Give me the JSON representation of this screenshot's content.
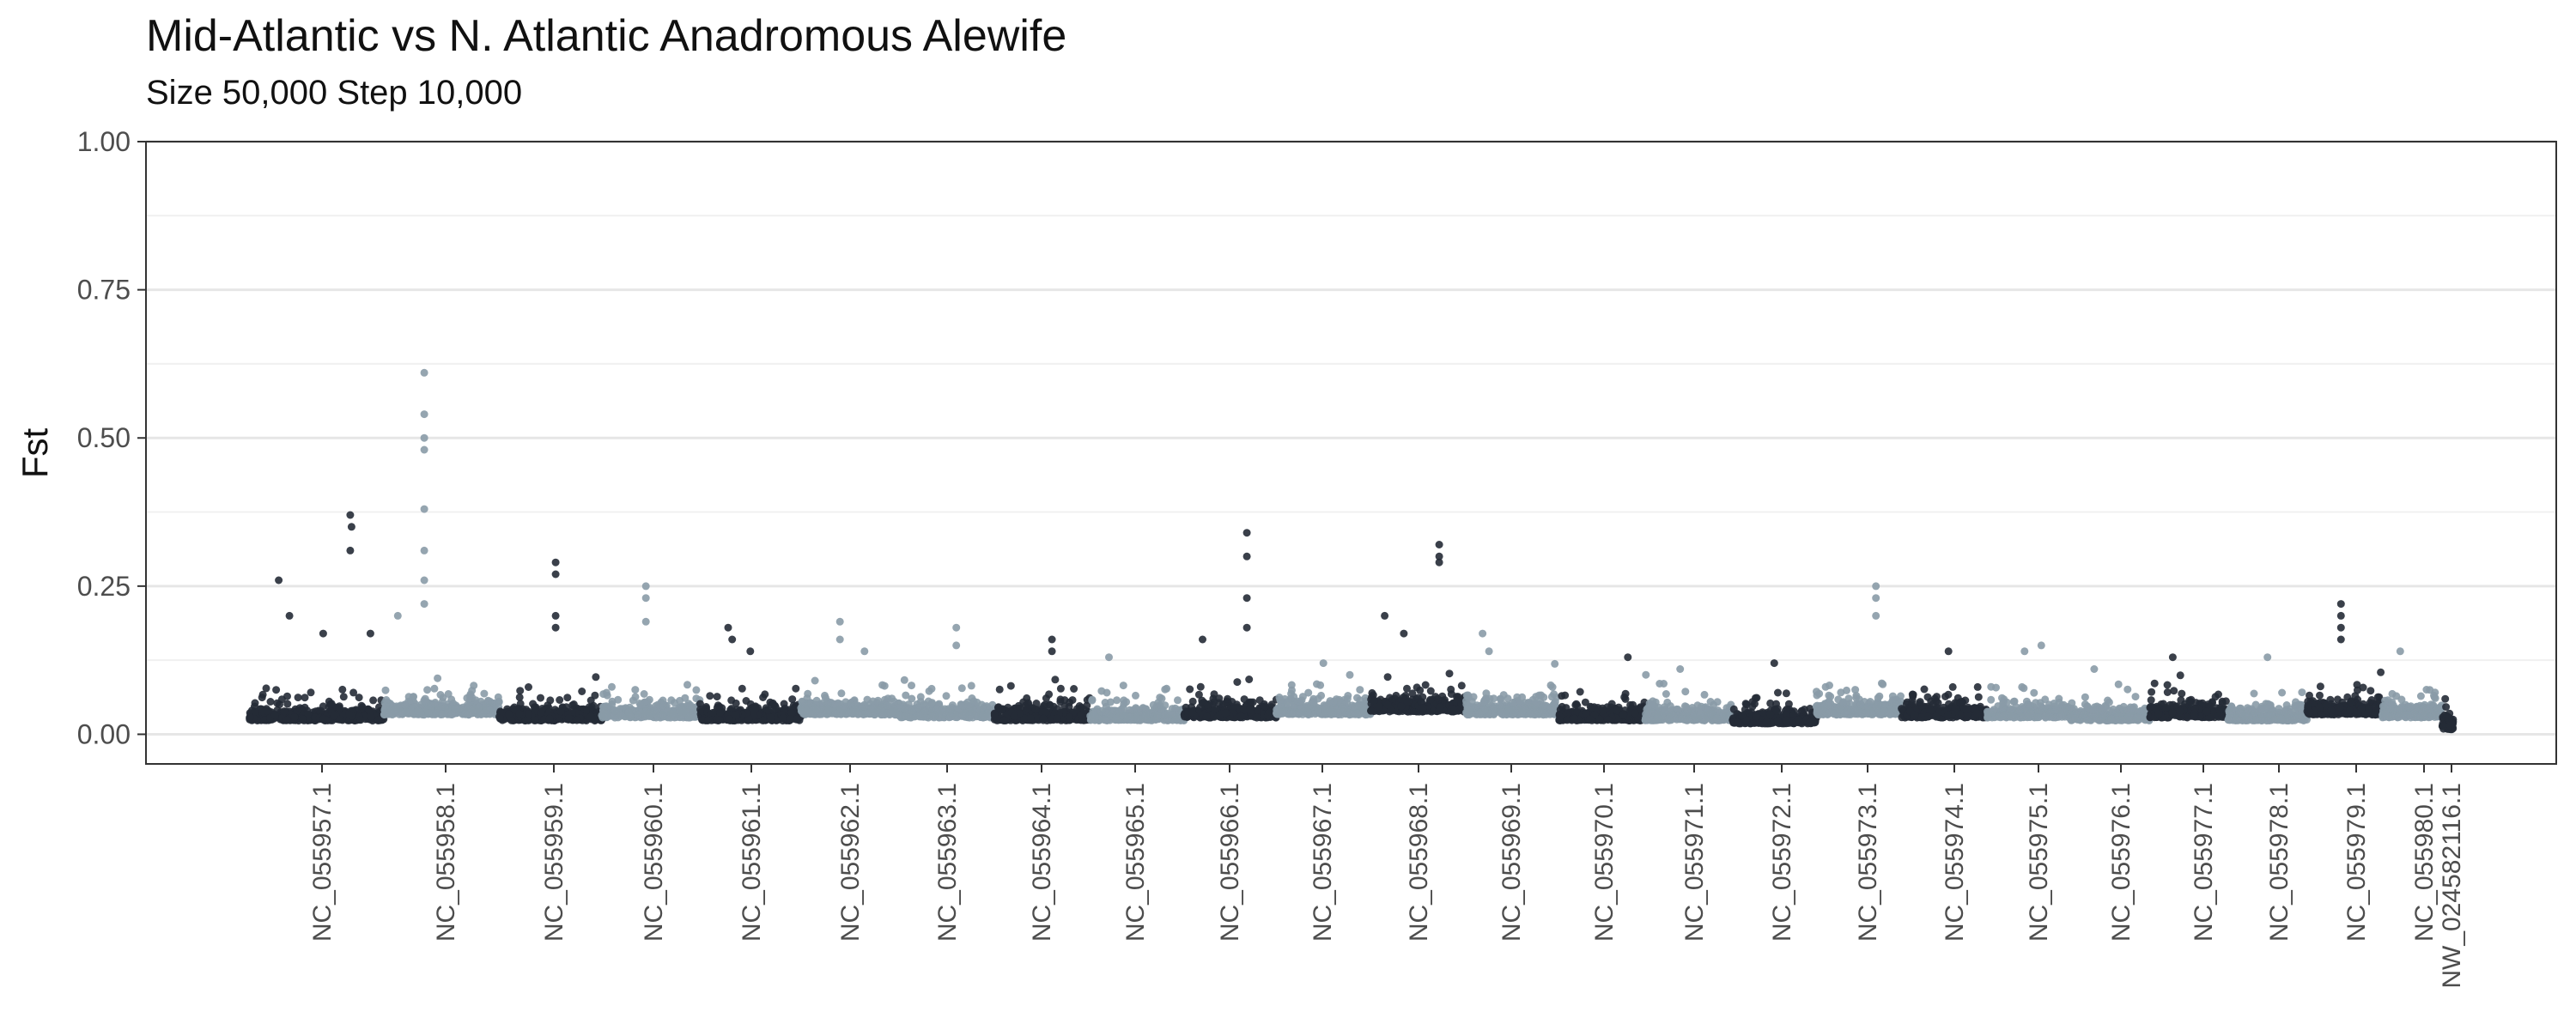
{
  "chart_data": {
    "type": "scatter",
    "title": "Mid-Atlantic vs N. Atlantic Anadromous Alewife",
    "subtitle": "Size 50,000 Step 10,000",
    "xlabel": "",
    "ylabel": "Fst",
    "ylim": [
      -0.05,
      1.0
    ],
    "yticks": [
      "0.00",
      "0.25",
      "0.50",
      "0.75",
      "1.00"
    ],
    "grid": true,
    "legend": "none",
    "colors": {
      "dark": "#252b36",
      "light": "#8a9ba7"
    },
    "chromosomes": [
      {
        "name": "NC_055957.1",
        "color": "dark",
        "baseline": 0.035,
        "peaks": [
          [
            0.22,
            0.26
          ],
          [
            0.3,
            0.2
          ],
          [
            0.75,
            0.37
          ],
          [
            0.76,
            0.35
          ],
          [
            0.75,
            0.31
          ],
          [
            0.55,
            0.17
          ],
          [
            0.9,
            0.17
          ]
        ]
      },
      {
        "name": "NC_055958.1",
        "color": "light",
        "baseline": 0.045,
        "peaks": [
          [
            0.35,
            0.61
          ],
          [
            0.35,
            0.54
          ],
          [
            0.35,
            0.5
          ],
          [
            0.35,
            0.48
          ],
          [
            0.35,
            0.38
          ],
          [
            0.35,
            0.31
          ],
          [
            0.35,
            0.26
          ],
          [
            0.35,
            0.22
          ],
          [
            0.12,
            0.2
          ]
        ]
      },
      {
        "name": "NC_055959.1",
        "color": "dark",
        "baseline": 0.035,
        "peaks": [
          [
            0.55,
            0.29
          ],
          [
            0.55,
            0.27
          ],
          [
            0.55,
            0.2
          ],
          [
            0.55,
            0.18
          ]
        ]
      },
      {
        "name": "NC_055960.1",
        "color": "light",
        "baseline": 0.04,
        "peaks": [
          [
            0.45,
            0.25
          ],
          [
            0.45,
            0.23
          ],
          [
            0.45,
            0.19
          ]
        ]
      },
      {
        "name": "NC_055961.1",
        "color": "dark",
        "baseline": 0.035,
        "peaks": [
          [
            0.28,
            0.18
          ],
          [
            0.32,
            0.16
          ],
          [
            0.5,
            0.14
          ]
        ]
      },
      {
        "name": "NC_055962.1",
        "color": "light",
        "baseline": 0.045,
        "peaks": [
          [
            0.4,
            0.19
          ],
          [
            0.4,
            0.16
          ],
          [
            0.65,
            0.14
          ]
        ]
      },
      {
        "name": "NC_055963.1",
        "color": "light",
        "baseline": 0.04,
        "peaks": [
          [
            0.6,
            0.18
          ],
          [
            0.6,
            0.15
          ]
        ]
      },
      {
        "name": "NC_055964.1",
        "color": "dark",
        "baseline": 0.035,
        "peaks": [
          [
            0.6,
            0.16
          ],
          [
            0.6,
            0.14
          ]
        ]
      },
      {
        "name": "NC_055965.1",
        "color": "light",
        "baseline": 0.035,
        "peaks": [
          [
            0.2,
            0.13
          ]
        ]
      },
      {
        "name": "NC_055966.1",
        "color": "dark",
        "baseline": 0.04,
        "peaks": [
          [
            0.68,
            0.34
          ],
          [
            0.68,
            0.3
          ],
          [
            0.68,
            0.23
          ],
          [
            0.68,
            0.18
          ],
          [
            0.2,
            0.16
          ]
        ]
      },
      {
        "name": "NC_055967.1",
        "color": "light",
        "baseline": 0.045,
        "peaks": [
          [
            0.5,
            0.12
          ]
        ]
      },
      {
        "name": "NC_055968.1",
        "color": "dark",
        "baseline": 0.05,
        "peaks": [
          [
            0.72,
            0.32
          ],
          [
            0.72,
            0.3
          ],
          [
            0.72,
            0.29
          ],
          [
            0.15,
            0.2
          ],
          [
            0.35,
            0.17
          ]
        ]
      },
      {
        "name": "NC_055969.1",
        "color": "light",
        "baseline": 0.045,
        "peaks": [
          [
            0.18,
            0.17
          ],
          [
            0.25,
            0.14
          ]
        ]
      },
      {
        "name": "NC_055970.1",
        "color": "dark",
        "baseline": 0.035,
        "peaks": [
          [
            0.8,
            0.13
          ]
        ]
      },
      {
        "name": "NC_055971.1",
        "color": "light",
        "baseline": 0.035,
        "peaks": [
          [
            0.4,
            0.11
          ]
        ]
      },
      {
        "name": "NC_055972.1",
        "color": "dark",
        "baseline": 0.03,
        "peaks": [
          [
            0.5,
            0.12
          ]
        ]
      },
      {
        "name": "NC_055973.1",
        "color": "light",
        "baseline": 0.045,
        "peaks": [
          [
            0.7,
            0.25
          ],
          [
            0.7,
            0.23
          ],
          [
            0.7,
            0.2
          ]
        ]
      },
      {
        "name": "NC_055974.1",
        "color": "dark",
        "baseline": 0.04,
        "peaks": [
          [
            0.55,
            0.14
          ]
        ]
      },
      {
        "name": "NC_055975.1",
        "color": "light",
        "baseline": 0.04,
        "peaks": [
          [
            0.65,
            0.15
          ],
          [
            0.45,
            0.14
          ]
        ]
      },
      {
        "name": "NC_055976.1",
        "color": "light",
        "baseline": 0.035,
        "peaks": [
          [
            0.3,
            0.11
          ]
        ]
      },
      {
        "name": "NC_055977.1",
        "color": "dark",
        "baseline": 0.04,
        "peaks": [
          [
            0.3,
            0.13
          ]
        ]
      },
      {
        "name": "NC_055978.1",
        "color": "light",
        "baseline": 0.035,
        "peaks": [
          [
            0.5,
            0.13
          ]
        ]
      },
      {
        "name": "NC_055979.1",
        "color": "dark",
        "baseline": 0.045,
        "peaks": [
          [
            0.45,
            0.22
          ],
          [
            0.45,
            0.2
          ],
          [
            0.45,
            0.18
          ],
          [
            0.45,
            0.16
          ]
        ]
      },
      {
        "name": "NC_055980.1",
        "color": "light",
        "baseline": 0.04,
        "peaks": [
          [
            0.3,
            0.14
          ]
        ]
      },
      {
        "name": "NW_024582116.1",
        "color": "dark",
        "baseline": 0.02,
        "peaks": []
      }
    ]
  }
}
